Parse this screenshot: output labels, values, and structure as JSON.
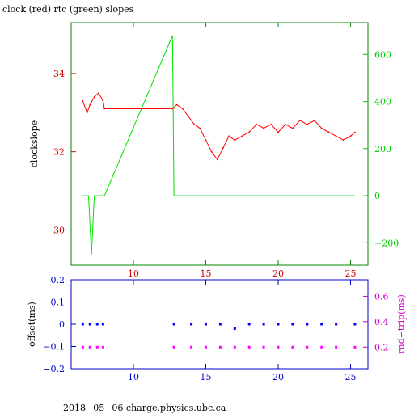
{
  "chart_data": [
    {
      "type": "line",
      "title": "clock (red) rtc (green) slopes",
      "ylabel": "clockslope",
      "y2label": "",
      "xlim": [
        5.7,
        26.2
      ],
      "ylim": [
        29.1,
        35.3
      ],
      "y2lim": [
        -295,
        735
      ],
      "x_ticks": [
        10,
        15,
        20,
        25
      ],
      "y_ticks": [
        30,
        32,
        34
      ],
      "y2_ticks": [
        -200,
        0,
        200,
        400,
        600
      ],
      "colors": {
        "clock": "#ff0000",
        "rtc": "#00e000",
        "frame": "#008800",
        "left_axis": "#cc0000",
        "right_axis": "#00cc00"
      },
      "series": [
        {
          "axis": "left",
          "x": [
            6.5,
            6.8,
            7.0,
            7.3,
            7.6,
            7.9,
            8.0,
            10.0,
            12.7,
            13.0,
            13.4,
            13.8,
            14.2,
            14.6,
            15.0,
            15.4,
            15.8,
            16.2,
            16.6,
            17.0,
            17.5,
            18.0,
            18.5,
            19.0,
            19.5,
            20.0,
            20.5,
            21.0,
            21.5,
            22.0,
            22.5,
            23.0,
            23.5,
            24.0,
            24.5,
            25.0,
            25.3
          ],
          "values": [
            33.3,
            33.0,
            33.2,
            33.4,
            33.5,
            33.3,
            33.1,
            33.1,
            33.1,
            33.2,
            33.1,
            32.9,
            32.7,
            32.6,
            32.3,
            32.0,
            31.8,
            32.1,
            32.4,
            32.3,
            32.4,
            32.5,
            32.7,
            32.6,
            32.7,
            32.5,
            32.7,
            32.6,
            32.8,
            32.7,
            32.8,
            32.6,
            32.5,
            32.4,
            32.3,
            32.4,
            32.5
          ]
        },
        {
          "axis": "right",
          "x": [
            6.5,
            6.9,
            7.1,
            7.3,
            8.0,
            12.7,
            12.8,
            25.3
          ],
          "values": [
            0,
            0,
            -250,
            0,
            0,
            680,
            0,
            0
          ]
        }
      ]
    },
    {
      "type": "scatter",
      "title": "",
      "ylabel": "offset(ms)",
      "y2label": "rnd−trip(ms)",
      "xlim": [
        5.7,
        26.2
      ],
      "ylim": [
        -0.2,
        0.2
      ],
      "y2lim": [
        0.03,
        0.73
      ],
      "x_ticks": [
        10,
        15,
        20,
        25
      ],
      "y_ticks": [
        -0.2,
        -0.1,
        0,
        0.1,
        0.2
      ],
      "y2_ticks": [
        0.2,
        0.4,
        0.6
      ],
      "colors": {
        "offset": "#0000ff",
        "roundtrip": "#ff00ff",
        "frame": "#0000cc",
        "left_axis": "#0000cc",
        "right_axis": "#cc00cc"
      },
      "series": [
        {
          "axis": "left",
          "x": [
            6.5,
            7.0,
            7.5,
            7.9,
            12.8,
            14.0,
            15.0,
            16.0,
            17.0,
            18.0,
            19.0,
            20.0,
            21.0,
            22.0,
            23.0,
            24.0,
            25.3
          ],
          "values": [
            0.0,
            0.0,
            0.0,
            0.0,
            0.0,
            0.0,
            0.0,
            0.0,
            -0.02,
            0.0,
            0.0,
            0.0,
            0.0,
            0.0,
            0.0,
            0.0,
            0.0
          ]
        },
        {
          "axis": "right",
          "x": [
            6.5,
            7.0,
            7.5,
            7.9,
            12.8,
            14.0,
            15.0,
            16.0,
            17.0,
            18.0,
            19.0,
            20.0,
            21.0,
            22.0,
            23.0,
            24.0,
            25.3
          ],
          "values": [
            0.2,
            0.2,
            0.2,
            0.2,
            0.2,
            0.2,
            0.2,
            0.2,
            0.2,
            0.2,
            0.2,
            0.2,
            0.2,
            0.2,
            0.2,
            0.2,
            0.2
          ]
        }
      ]
    }
  ],
  "footer": "2018−05−06  charge.physics.ubc.ca"
}
